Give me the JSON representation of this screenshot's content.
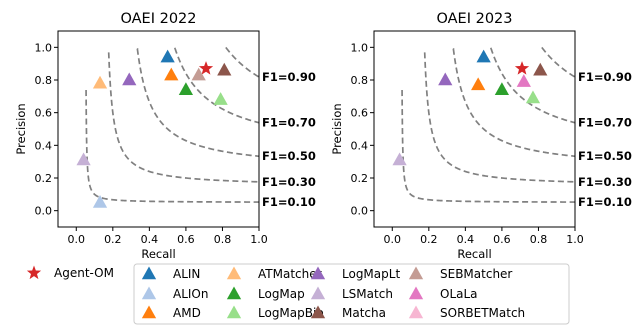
{
  "chart_data": [
    {
      "type": "scatter",
      "title": "OAEI 2022",
      "xlabel": "Recall",
      "ylabel": "Precision",
      "xlim": [
        -0.1,
        1.0
      ],
      "ylim": [
        -0.1,
        1.1
      ],
      "x_ticks": [
        "0.0",
        "0.2",
        "0.4",
        "0.6",
        "0.8",
        "1.0"
      ],
      "y_ticks": [
        "0.0",
        "0.2",
        "0.4",
        "0.6",
        "0.8",
        "1.0"
      ],
      "grid": false,
      "f1_contours": [
        {
          "value": 0.9,
          "label": "F1=0.90"
        },
        {
          "value": 0.7,
          "label": "F1=0.70"
        },
        {
          "value": 0.5,
          "label": "F1=0.50"
        },
        {
          "value": 0.3,
          "label": "F1=0.30"
        },
        {
          "value": 0.1,
          "label": "F1=0.10"
        }
      ],
      "points": [
        {
          "system": "Agent-OM",
          "x": 0.71,
          "y": 0.87
        },
        {
          "system": "ALIN",
          "x": 0.5,
          "y": 0.94
        },
        {
          "system": "ALIOn",
          "x": 0.13,
          "y": 0.05
        },
        {
          "system": "AMD",
          "x": 0.52,
          "y": 0.83
        },
        {
          "system": "ATMatcher",
          "x": 0.13,
          "y": 0.78
        },
        {
          "system": "LogMap",
          "x": 0.6,
          "y": 0.74
        },
        {
          "system": "LogMapBio",
          "x": 0.79,
          "y": 0.68
        },
        {
          "system": "LogMapLt",
          "x": 0.29,
          "y": 0.8
        },
        {
          "system": "LSMatch",
          "x": 0.04,
          "y": 0.31
        },
        {
          "system": "Matcha",
          "x": 0.81,
          "y": 0.86
        },
        {
          "system": "SEBMatcher",
          "x": 0.67,
          "y": 0.83
        }
      ]
    },
    {
      "type": "scatter",
      "title": "OAEI 2023",
      "xlabel": "Recall",
      "ylabel": "Precision",
      "xlim": [
        -0.1,
        1.0
      ],
      "ylim": [
        -0.1,
        1.1
      ],
      "x_ticks": [
        "0.0",
        "0.2",
        "0.4",
        "0.6",
        "0.8",
        "1.0"
      ],
      "y_ticks": [
        "0.0",
        "0.2",
        "0.4",
        "0.6",
        "0.8",
        "1.0"
      ],
      "grid": false,
      "f1_contours": [
        {
          "value": 0.9,
          "label": "F1=0.90"
        },
        {
          "value": 0.7,
          "label": "F1=0.70"
        },
        {
          "value": 0.5,
          "label": "F1=0.50"
        },
        {
          "value": 0.3,
          "label": "F1=0.30"
        },
        {
          "value": 0.1,
          "label": "F1=0.10"
        }
      ],
      "points": [
        {
          "system": "Agent-OM",
          "x": 0.71,
          "y": 0.87
        },
        {
          "system": "ALIN",
          "x": 0.5,
          "y": 0.94
        },
        {
          "system": "AMD",
          "x": 0.47,
          "y": 0.77
        },
        {
          "system": "LogMap",
          "x": 0.6,
          "y": 0.74
        },
        {
          "system": "LogMapBio",
          "x": 0.77,
          "y": 0.69
        },
        {
          "system": "LogMapLt",
          "x": 0.29,
          "y": 0.8
        },
        {
          "system": "LSMatch",
          "x": 0.04,
          "y": 0.31
        },
        {
          "system": "Matcha",
          "x": 0.81,
          "y": 0.86
        },
        {
          "system": "OLaLa",
          "x": 0.72,
          "y": 0.79
        }
      ]
    }
  ],
  "legend": {
    "placement": "bottom",
    "agent": {
      "name": "Agent-OM",
      "marker": "star",
      "color": "#d62728"
    },
    "items": [
      {
        "name": "ALIN",
        "color": "#1f77b4"
      },
      {
        "name": "ALIOn",
        "color": "#aec7e8"
      },
      {
        "name": "AMD",
        "color": "#ff7f0e"
      },
      {
        "name": "ATMatcher",
        "color": "#ffbb78"
      },
      {
        "name": "LogMap",
        "color": "#2ca02c"
      },
      {
        "name": "LogMapBio",
        "color": "#98df8a"
      },
      {
        "name": "LogMapLt",
        "color": "#9467bd"
      },
      {
        "name": "LSMatch",
        "color": "#c5b0d5"
      },
      {
        "name": "Matcha",
        "color": "#8c564b"
      },
      {
        "name": "SEBMatcher",
        "color": "#c49c94"
      },
      {
        "name": "OLaLa",
        "color": "#e377c2"
      },
      {
        "name": "SORBETMatch",
        "color": "#f7b6d2"
      }
    ]
  },
  "colors": {
    "contour": "#808080",
    "agent": "#d62728"
  }
}
